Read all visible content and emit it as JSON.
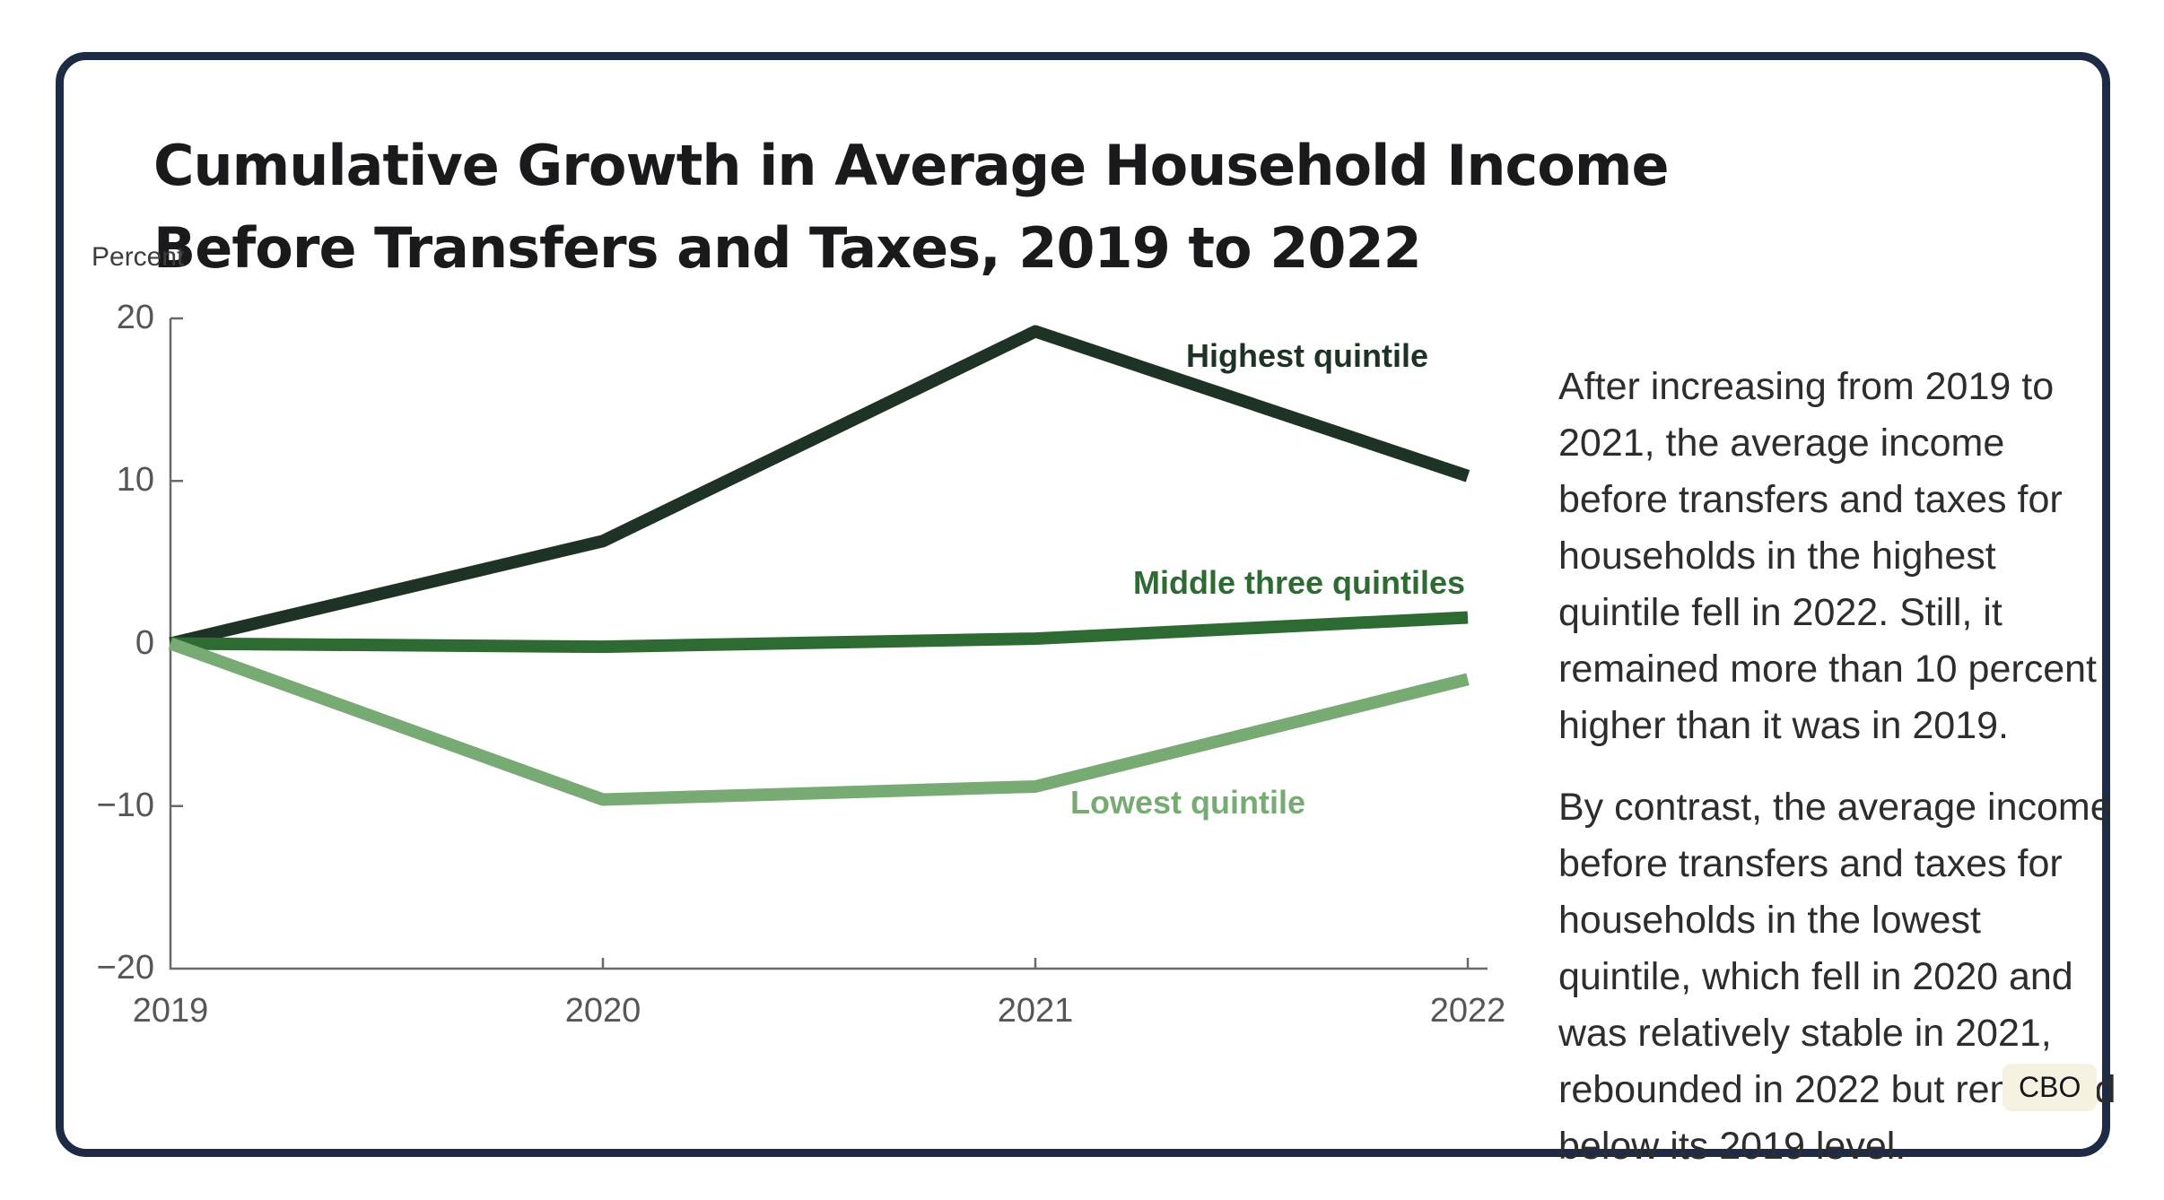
{
  "title": {
    "line1": "Cumulative Growth in Average Household Income",
    "line2": "Before Transfers and Taxes, 2019 to 2022"
  },
  "chart_data": {
    "type": "line",
    "title": "Cumulative Growth in Average Household Income Before Transfers and Taxes, 2019 to 2022",
    "xlabel": "",
    "ylabel": "Percent",
    "x": [
      2019,
      2020,
      2021,
      2022
    ],
    "xticklabels": [
      "2019",
      "2020",
      "2021",
      "2022"
    ],
    "yticks": [
      20,
      10,
      0,
      -10,
      -20
    ],
    "ylim": [
      -20,
      20
    ],
    "grid": false,
    "legend_position": "inline-labels-next-to-lines",
    "series": [
      {
        "name": "Highest quintile",
        "color": "#1e3325",
        "values": [
          0,
          6.3,
          19.2,
          10.3
        ]
      },
      {
        "name": "Middle three quintiles",
        "color": "#2e6b33",
        "values": [
          0,
          -0.2,
          0.3,
          1.6
        ]
      },
      {
        "name": "Lowest quintile",
        "color": "#78ab74",
        "values": [
          0,
          -9.6,
          -8.8,
          -2.2
        ]
      }
    ],
    "axis_color": "#6a6a6e"
  },
  "annotations": {
    "para1": "After increasing from 2019 to 2021, the average income before transfers and taxes for households in the highest quintile fell in 2022. Still, it remained more than 10 percent higher than it was in 2019.",
    "para2": "By contrast, the average income before transfers and taxes for households in the lowest quintile, which fell in 2020 and was relatively stable in 2021, rebounded in 2022 but remained below its 2019 level."
  },
  "badge": {
    "label": "CBO"
  },
  "colors": {
    "card_border": "#1e2b44",
    "badge_background": "#f5f2e2",
    "tick_text": "#56565a",
    "title_text": "#1a1a1c"
  }
}
